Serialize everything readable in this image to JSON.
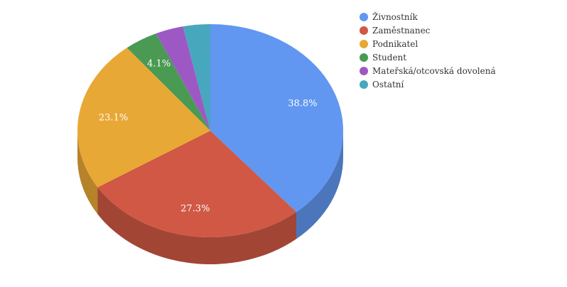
{
  "chart_data": {
    "type": "pie",
    "three_d": true,
    "categories": [
      "Živnostník",
      "Zaměstnanec",
      "Podnikatel",
      "Student",
      "Mateřská/otcovská dovolená",
      "Ostatní"
    ],
    "values": [
      38.8,
      27.3,
      23.1,
      4.1,
      3.4,
      3.3
    ],
    "labels": [
      "38.8%",
      "27.3%",
      "23.1%",
      "4.1%",
      "",
      ""
    ],
    "colors": [
      "#6197f1",
      "#d05844",
      "#e8a835",
      "#4a9a54",
      "#9c59c4",
      "#47a7bd"
    ],
    "legend_position": "right"
  }
}
